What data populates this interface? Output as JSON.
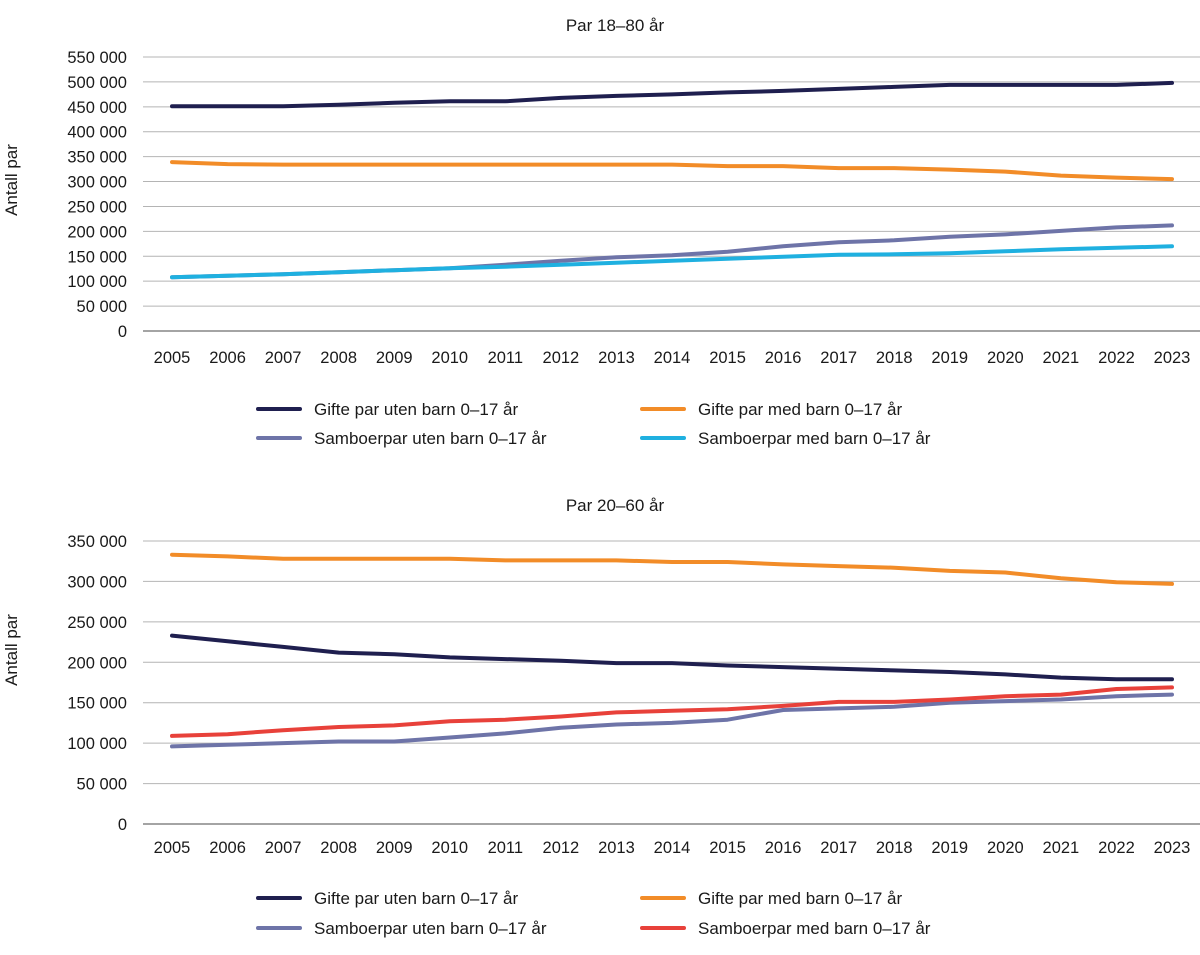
{
  "chart_data": [
    {
      "type": "line",
      "title": "Par 18–80 år",
      "xlabel": "",
      "ylabel": "Antall par",
      "ylim": [
        0,
        550000
      ],
      "yticks": [
        0,
        50000,
        100000,
        150000,
        200000,
        250000,
        300000,
        350000,
        400000,
        450000,
        500000,
        550000
      ],
      "ytick_labels": [
        "0",
        "50 000",
        "100 000",
        "150 000",
        "200 000",
        "250 000",
        "300 000",
        "350 000",
        "400 000",
        "450 000",
        "500 000",
        "550 000"
      ],
      "grid": true,
      "legend_position": "bottom",
      "x": [
        "2005",
        "2006",
        "2007",
        "2008",
        "2009",
        "2010",
        "2011",
        "2012",
        "2013",
        "2014",
        "2015",
        "2016",
        "2017",
        "2018",
        "2019",
        "2020",
        "2021",
        "2022",
        "2023"
      ],
      "series": [
        {
          "name": "Gifte par uten barn 0–17 år",
          "color": "#1f1f4f",
          "values": [
            451000,
            451000,
            451000,
            454000,
            458000,
            461000,
            461000,
            468000,
            472000,
            475000,
            479000,
            482000,
            486000,
            490000,
            494000,
            494000,
            494000,
            494000,
            498000
          ]
        },
        {
          "name": "Gifte par med barn 0–17 år",
          "color": "#f28c28",
          "values": [
            339000,
            335000,
            334000,
            334000,
            334000,
            334000,
            334000,
            334000,
            334000,
            334000,
            331000,
            331000,
            327000,
            327000,
            324000,
            320000,
            312000,
            308000,
            305000
          ]
        },
        {
          "name": "Samboerpar uten barn 0–17 år",
          "color": "#6e74a8",
          "values": [
            108000,
            111000,
            114000,
            118000,
            122000,
            126000,
            133000,
            141000,
            148000,
            152000,
            159000,
            170000,
            178000,
            182000,
            189000,
            194000,
            201000,
            208000,
            212000
          ]
        },
        {
          "name": "Samboerpar med barn 0–17 år",
          "color": "#1fb0e0",
          "values": [
            108000,
            111000,
            114000,
            118000,
            122000,
            126000,
            129000,
            133000,
            137000,
            141000,
            145000,
            149000,
            153000,
            154000,
            156000,
            160000,
            164000,
            167000,
            170000
          ]
        }
      ]
    },
    {
      "type": "line",
      "title": "Par 20–60 år",
      "xlabel": "",
      "ylabel": "Antall par",
      "ylim": [
        0,
        350000
      ],
      "yticks": [
        0,
        50000,
        100000,
        150000,
        200000,
        250000,
        300000,
        350000
      ],
      "ytick_labels": [
        "0",
        "50 000",
        "100 000",
        "150 000",
        "200 000",
        "250 000",
        "300 000",
        "350 000"
      ],
      "grid": true,
      "legend_position": "bottom",
      "x": [
        "2005",
        "2006",
        "2007",
        "2008",
        "2009",
        "2010",
        "2011",
        "2012",
        "2013",
        "2014",
        "2015",
        "2016",
        "2017",
        "2018",
        "2019",
        "2020",
        "2021",
        "2022",
        "2023"
      ],
      "series": [
        {
          "name": "Gifte par uten barn 0–17 år",
          "color": "#1f1f4f",
          "values": [
            233000,
            226000,
            219000,
            212000,
            210000,
            206000,
            204000,
            202000,
            199000,
            199000,
            196000,
            194000,
            192000,
            190000,
            188000,
            185000,
            181000,
            179000,
            179000
          ]
        },
        {
          "name": "Gifte par med barn 0–17 år",
          "color": "#f28c28",
          "values": [
            333000,
            331000,
            328000,
            328000,
            328000,
            328000,
            326000,
            326000,
            326000,
            324000,
            324000,
            321000,
            319000,
            317000,
            313000,
            311000,
            304000,
            299000,
            297000
          ]
        },
        {
          "name": "Samboerpar uten barn 0–17 år",
          "color": "#6e74a8",
          "values": [
            96000,
            98000,
            100000,
            102000,
            102000,
            107000,
            112000,
            119000,
            123000,
            125000,
            129000,
            141000,
            143000,
            145000,
            150000,
            152000,
            154000,
            158000,
            160000
          ]
        },
        {
          "name": "Samboerpar med barn 0–17 år",
          "color": "#e8413a",
          "values": [
            109000,
            111000,
            116000,
            120000,
            122000,
            127000,
            129000,
            133000,
            138000,
            140000,
            142000,
            146000,
            151000,
            151000,
            154000,
            158000,
            160000,
            167000,
            169000
          ]
        }
      ]
    }
  ]
}
